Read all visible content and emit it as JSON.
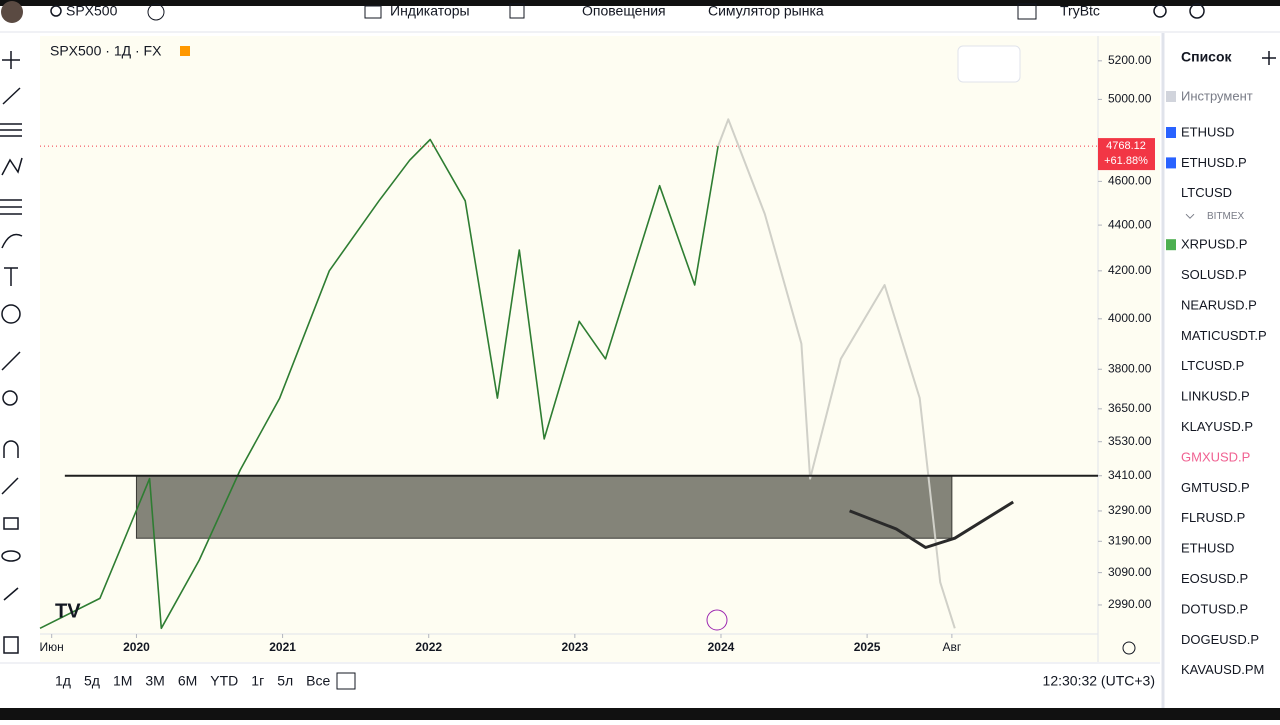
{
  "toolbar": {
    "symbol": "SPX500",
    "indicators": "Индикаторы",
    "alerts": "Оповещения",
    "replay": "Симулятор рынка",
    "account": "TryBtc"
  },
  "chart": {
    "title": "SPX500 · 1Д · FX",
    "log_scale": true,
    "xlim": [
      2019.34,
      2026.58
    ],
    "ylim": [
      2903,
      5333
    ],
    "yticks": [
      {
        "value": 5200,
        "label": "5200.00"
      },
      {
        "value": 5000,
        "label": "5000.00"
      },
      {
        "value": 4600,
        "label": "4600.00"
      },
      {
        "value": 4400,
        "label": "4400.00"
      },
      {
        "value": 4200,
        "label": "4200.00"
      },
      {
        "value": 4000,
        "label": "4000.00"
      },
      {
        "value": 3800,
        "label": "3800.00"
      },
      {
        "value": 3650,
        "label": "3650.00"
      },
      {
        "value": 3530,
        "label": "3530.00"
      },
      {
        "value": 3410,
        "label": "3410.00"
      },
      {
        "value": 3290,
        "label": "3290.00"
      },
      {
        "value": 3190,
        "label": "3190.00"
      },
      {
        "value": 3090,
        "label": "3090.00"
      },
      {
        "value": 2990,
        "label": "2990.00"
      }
    ],
    "xticks": [
      {
        "value": 2019.42,
        "label": "Июн"
      },
      {
        "value": 2020,
        "label": "2020"
      },
      {
        "value": 2021,
        "label": "2021"
      },
      {
        "value": 2022,
        "label": "2022"
      },
      {
        "value": 2023,
        "label": "2023"
      },
      {
        "value": 2024,
        "label": "2024"
      },
      {
        "value": 2025,
        "label": "2025"
      },
      {
        "value": 2025.58,
        "label": "Авг"
      }
    ],
    "price": {
      "value": 4768.12,
      "label": "4768.12",
      "change": "+61.88%"
    },
    "series": {
      "color": "#2e7d32",
      "x": [
        2019.34,
        2019.75,
        2020.09,
        2020.17,
        2020.43,
        2020.71,
        2020.98,
        2021.32,
        2021.66,
        2021.87,
        2022.01,
        2022.25,
        2022.47,
        2022.62,
        2022.79,
        2023.03,
        2023.21,
        2023.58,
        2023.82,
        2023.98
      ],
      "values": [
        2920,
        3010,
        3400,
        2920,
        3130,
        3430,
        3690,
        4200,
        4510,
        4700,
        4800,
        4510,
        3690,
        4290,
        3540,
        3990,
        3840,
        4580,
        4140,
        4768.12
      ]
    },
    "projection": {
      "color": "#d0d0c8",
      "x": [
        2023.98,
        2024.05,
        2024.3,
        2024.55,
        2024.61,
        2024.82,
        2025.12,
        2025.36,
        2025.5,
        2025.6
      ],
      "values": [
        4768.12,
        4900,
        4450,
        3900,
        3400,
        3840,
        4140,
        3690,
        3060,
        2920
      ]
    },
    "zone": {
      "x": [
        2020,
        2025.58
      ],
      "y": [
        3200,
        3410
      ],
      "color": "#6e6e64"
    },
    "level": {
      "x": [
        2019.51,
        2026.58
      ],
      "value": 3410
    },
    "drawing": {
      "x": [
        2024.88,
        2025.2,
        2025.4,
        2025.6,
        2026.0
      ],
      "values": [
        3290,
        3230,
        3170,
        3200,
        3320
      ]
    }
  },
  "ranges": [
    "1д",
    "5д",
    "1М",
    "3М",
    "6М",
    "YTD",
    "1г",
    "5л",
    "Все"
  ],
  "clock": "12:30:32 (UTC+3)",
  "watchlist": {
    "title": "Список",
    "header": "Инструмент",
    "items": [
      {
        "name": "ETHUSD",
        "flag": "#2962ff"
      },
      {
        "name": "ETHUSD.P",
        "flag": "#2962ff"
      },
      {
        "name": "LTCUSD"
      }
    ],
    "group": {
      "name": "BITMEX",
      "items": [
        {
          "name": "XRPUSD.P",
          "flag": "#4caf50"
        },
        {
          "name": "SOLUSD.P"
        },
        {
          "name": "NEARUSD.P"
        },
        {
          "name": "MATICUSDT.P"
        },
        {
          "name": "LTCUSD.P"
        },
        {
          "name": "LINKUSD.P"
        },
        {
          "name": "KLAYUSD.P"
        },
        {
          "name": "GMXUSD.P",
          "color": "#f06292"
        },
        {
          "name": "GMTUSD.P"
        },
        {
          "name": "FLRUSD.P"
        },
        {
          "name": "ETHUSD"
        },
        {
          "name": "EOSUSD.P"
        },
        {
          "name": "DOTUSD.P"
        },
        {
          "name": "DOGEUSD.P"
        },
        {
          "name": "KAVAUSD.PM"
        }
      ]
    }
  }
}
